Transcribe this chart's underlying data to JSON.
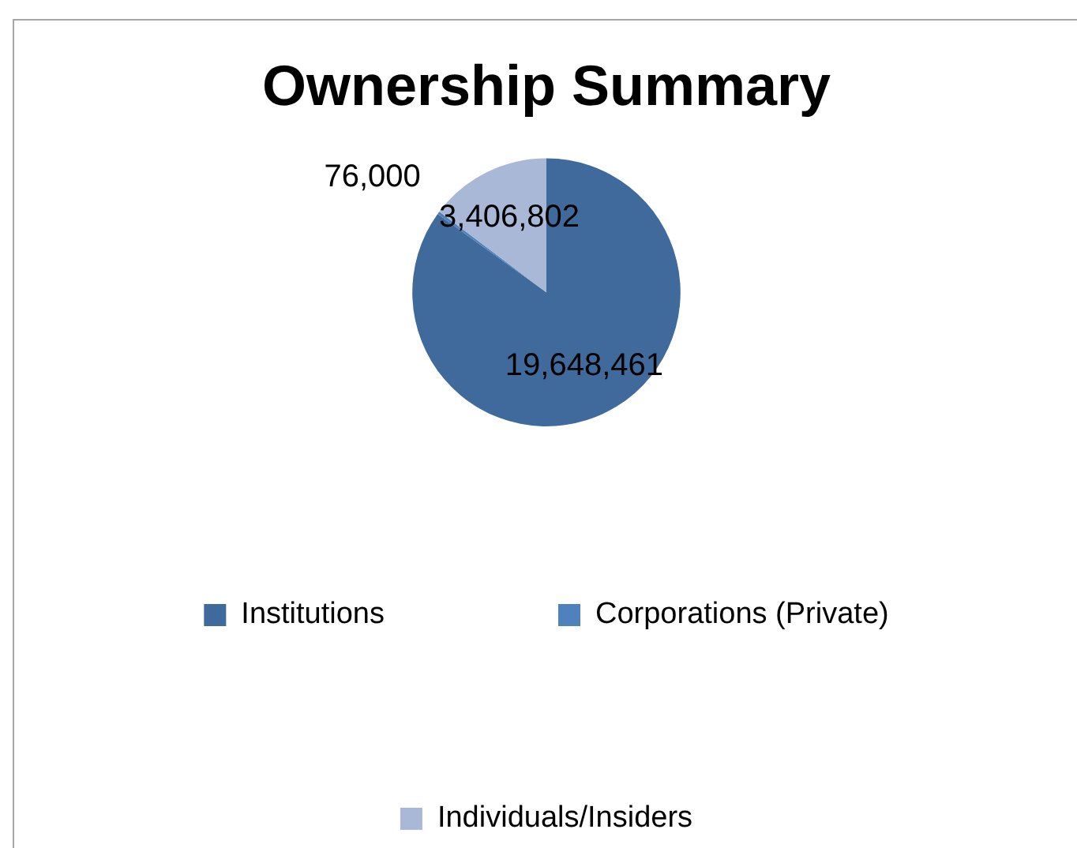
{
  "chart_data": {
    "type": "pie",
    "title": "Ownership Summary",
    "categories": [
      "Institutions",
      "Corporations (Private)",
      "Individuals/Insiders"
    ],
    "values": [
      19648461,
      76000,
      3406802
    ],
    "colors": [
      "#416a9c",
      "#4f81bd",
      "#a9b8d7"
    ],
    "value_labels": [
      "19,648,461",
      "76,000",
      "3,406,802"
    ],
    "legend": "bottom"
  }
}
